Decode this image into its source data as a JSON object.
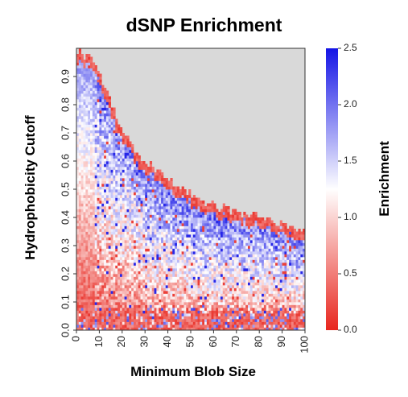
{
  "chart_data": {
    "type": "heatmap",
    "title": "dSNP Enrichment",
    "xlabel": "Minimum Blob Size",
    "ylabel": "Hydrophobicity Cutoff",
    "xlim": [
      0,
      100
    ],
    "ylim": [
      0.0,
      1.0
    ],
    "x_ticks": [
      "0",
      "10",
      "20",
      "30",
      "40",
      "50",
      "60",
      "70",
      "80",
      "90",
      "100"
    ],
    "y_ticks": [
      "0.0",
      "0.1",
      "0.2",
      "0.3",
      "0.4",
      "0.5",
      "0.6",
      "0.7",
      "0.8",
      "0.9"
    ],
    "missing_color": "#d9d9d9",
    "colorbar": {
      "label": "Enrichment",
      "range": [
        0.0,
        2.5
      ],
      "ticks": [
        "0.0",
        "0.5",
        "1.0",
        "1.5",
        "2.0",
        "2.5"
      ],
      "colormap": "bwr_r",
      "low_color": "#e8261e",
      "mid_color": "#ffffff",
      "high_color": "#1414e6"
    },
    "data_boundary": {
      "description_free": true,
      "x": [
        0,
        5,
        10,
        15,
        20,
        25,
        30,
        40,
        50,
        60,
        70,
        80,
        90,
        100
      ],
      "max_cutoff": [
        1.0,
        0.97,
        0.92,
        0.81,
        0.71,
        0.64,
        0.6,
        0.54,
        0.48,
        0.44,
        0.42,
        0.4,
        0.38,
        0.35
      ]
    }
  }
}
